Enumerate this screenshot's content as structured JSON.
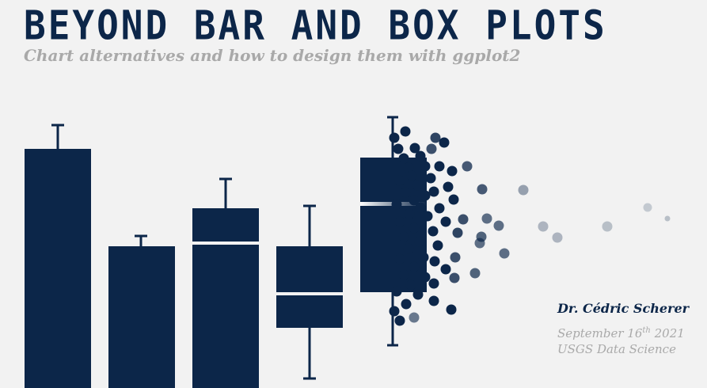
{
  "slide": {
    "title": "BEYOND BAR AND BOX PLOTS",
    "subtitle": "Chart alternatives and how to design them with ggplot2",
    "author": "Dr. Cédric Scherer",
    "date_day": "September 16",
    "date_suffix": "th",
    "date_year": " 2021",
    "organization": "USGS Data Science"
  },
  "colors": {
    "background": "#f2f2f2",
    "primary": "#0c2649",
    "muted": "#a9a9a9"
  },
  "chart_data": {
    "type": "illustration",
    "bars": [
      {
        "value": 0.91,
        "error_high": 0.98
      },
      {
        "value": 0.55,
        "error_high": 0.58
      },
      {
        "value": 0.67,
        "error_high": 0.79,
        "median": 0.56
      },
      {
        "value": 0.53,
        "error_high": 0.69,
        "median": 0.34,
        "q1": 0.22,
        "whisker_low": 0.03
      }
    ]
  }
}
